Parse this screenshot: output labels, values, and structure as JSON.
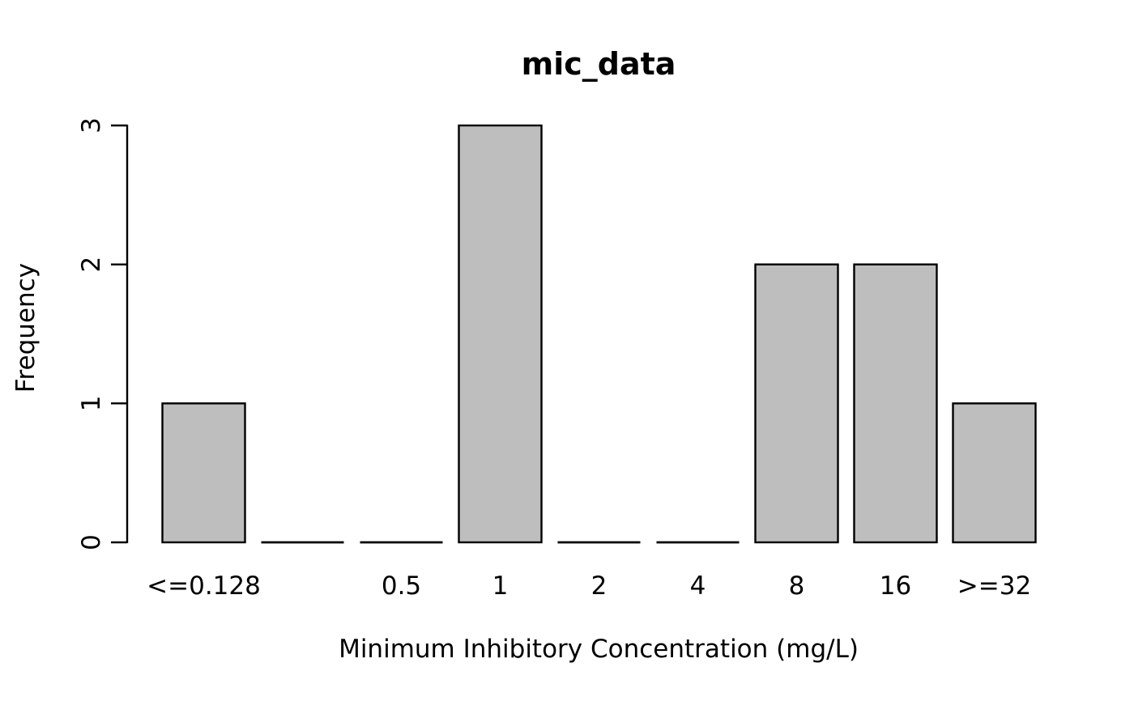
{
  "chart_data": {
    "type": "bar",
    "title": "mic_data",
    "xlabel": "Minimum Inhibitory Concentration (mg/L)",
    "ylabel": "Frequency",
    "categories": [
      "<=0.128",
      "",
      "0.5",
      "1",
      "2",
      "4",
      "8",
      "16",
      ">=32"
    ],
    "values": [
      1,
      0,
      0,
      3,
      0,
      0,
      2,
      2,
      1
    ],
    "yticks": [
      0,
      1,
      2,
      3
    ],
    "ylim": [
      0,
      3
    ],
    "grid": false,
    "legend_position": "none",
    "colors": {
      "bar_fill": "#BEBEBE",
      "bar_stroke": "#000000",
      "axis": "#000000",
      "text": "#000000",
      "background": "#FFFFFF"
    }
  }
}
